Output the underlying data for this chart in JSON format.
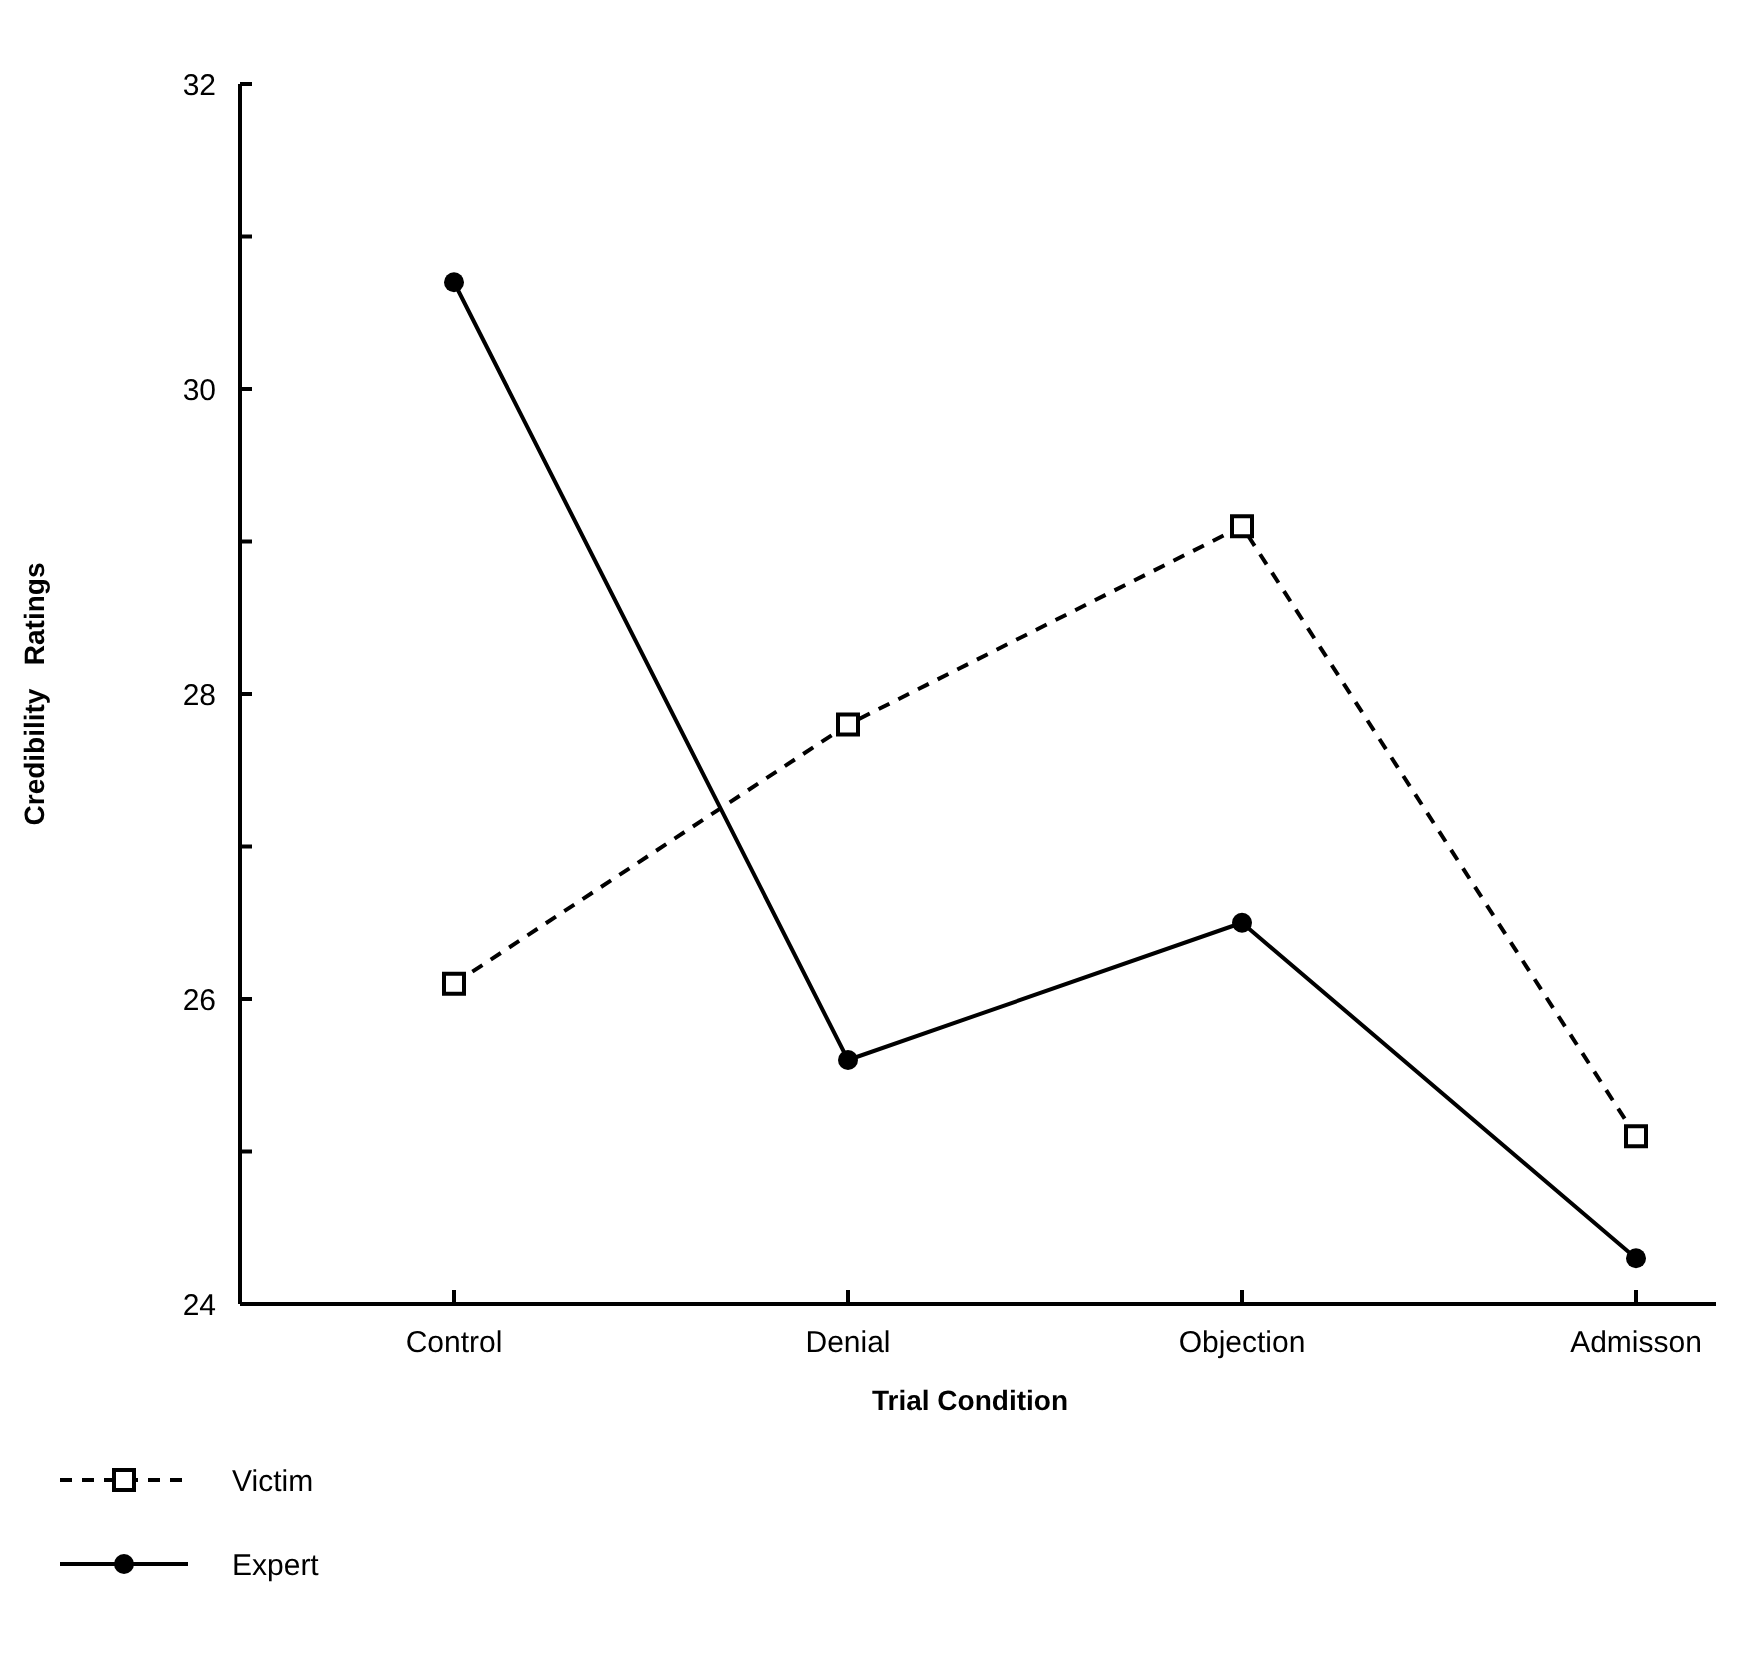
{
  "chart_data": {
    "type": "line",
    "xlabel": "Trial Condition",
    "ylabel": "Credibility   Ratings",
    "categories": [
      "Control",
      "Denial",
      "Objection",
      "Admisson"
    ],
    "series": [
      {
        "name": "Victim",
        "color": "#000000",
        "values": [
          26.1,
          27.8,
          29.1,
          25.1
        ],
        "marker": "square",
        "line_style": "dashed"
      },
      {
        "name": "Expert",
        "color": "#000000",
        "values": [
          30.7,
          25.6,
          26.5,
          24.3
        ],
        "marker": "circle",
        "line_style": "solid"
      }
    ],
    "ylim": [
      24,
      32
    ],
    "yticks": [
      24,
      {
        "value": 25,
        "label": null
      },
      26,
      {
        "value": 27,
        "label": null
      },
      28,
      {
        "value": 29,
        "label": null
      },
      30,
      {
        "value": 31,
        "label": null
      },
      32
    ],
    "grid": false,
    "legend": "bottom left"
  }
}
